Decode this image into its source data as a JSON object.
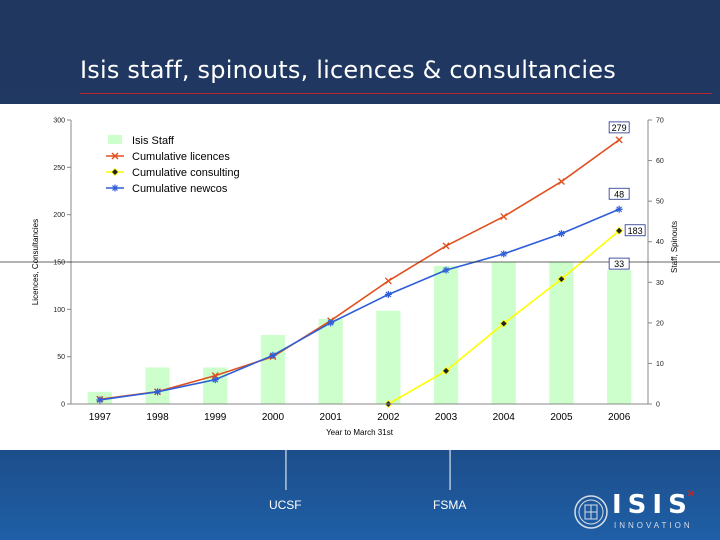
{
  "slide": {
    "title": "Isis staff, spinouts, licences & consultancies",
    "annotations": [
      {
        "label": "UCSF",
        "year": "2000"
      },
      {
        "label": "FSMA",
        "year": "2003"
      }
    ],
    "logo": {
      "name": "ISIS",
      "subtitle": "INNOVATION",
      "chevrons": "»"
    }
  },
  "chart_data": {
    "type": "bar",
    "categories": [
      "1997",
      "1998",
      "1999",
      "2000",
      "2001",
      "2002",
      "2003",
      "2004",
      "2005",
      "2006"
    ],
    "xlabel": "Year to March 31st",
    "ylabel_left": "Licences, Consultancies",
    "ylabel_right": "Staff, Spinouts",
    "ylim_left": [
      0,
      300
    ],
    "yticks_left": [
      0,
      50,
      100,
      150,
      200,
      250,
      300
    ],
    "ylim_right": [
      0,
      70
    ],
    "yticks_right": [
      0,
      10,
      20,
      30,
      40,
      50,
      60,
      70
    ],
    "horizontal_line_left": 150,
    "legend_position": "top-left",
    "grid": false,
    "series": [
      {
        "name": "Isis Staff",
        "kind": "bar",
        "axis": "right",
        "color": "#ccffcc",
        "values": [
          3,
          9,
          9,
          17,
          21,
          23,
          34,
          35,
          35,
          33
        ]
      },
      {
        "name": "Cumulative licences",
        "kind": "line",
        "marker": "x",
        "axis": "left",
        "color": "#e0501e",
        "values": [
          5,
          13,
          30,
          50,
          88,
          130,
          167,
          198,
          235,
          279
        ]
      },
      {
        "name": "Cumulative consulting",
        "kind": "line",
        "marker": "diamond",
        "axis": "left",
        "color": "#ffff00",
        "values": [
          null,
          null,
          null,
          null,
          null,
          0,
          35,
          85,
          132,
          183
        ]
      },
      {
        "name": "Cumulative newcos",
        "kind": "line",
        "marker": "star",
        "axis": "right",
        "color": "#2e5fd8",
        "values": [
          1,
          3,
          6,
          12,
          20,
          27,
          33,
          37,
          42,
          48
        ]
      }
    ],
    "data_labels": [
      {
        "text": "279",
        "series": "Cumulative licences",
        "category": "2006"
      },
      {
        "text": "48",
        "series": "Cumulative newcos",
        "category": "2006"
      },
      {
        "text": "183",
        "series": "Cumulative consulting",
        "category": "2006"
      },
      {
        "text": "33",
        "series": "Isis Staff",
        "category": "2006"
      }
    ]
  }
}
